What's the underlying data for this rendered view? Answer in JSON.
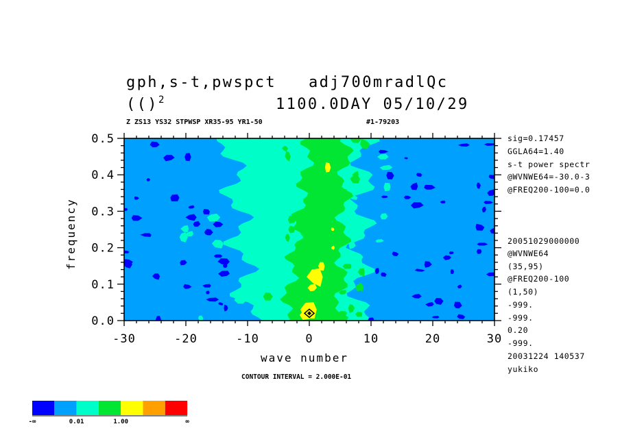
{
  "header": {
    "title_line1": "gph,s-t,pwspct   adj700mradlQc",
    "title_line2_left": "(()",
    "title_superscript": "2",
    "title_line2_right": "1100.0DAY 05/10/29",
    "subtitle": "Z ZS13 YS32 STPWSP XR35-95 YR1-50",
    "run_id": "#1-79203"
  },
  "side_info": [
    "sig=0.17457",
    "GGLA64=1.40",
    "s-t power spectr",
    "@WVNWE64=-30.0-3",
    "@FREQ200-100=0.0"
  ],
  "side_info2": [
    "20051029000000",
    "@WVNWE64",
    "(35,95)",
    "@FREQ200-100",
    "(1,50)",
    "-999.",
    "-999.",
    "0.20",
    "-999.",
    "20031224 140537",
    "yukiko"
  ],
  "footer": {
    "contour_interval": "CONTOUR INTERVAL = 2.000E-01"
  },
  "colorbar": {
    "colors": [
      "#0000ff",
      "#00a0ff",
      "#00ffc8",
      "#00e632",
      "#ffff00",
      "#ffa000",
      "#ff0000"
    ],
    "labels": [
      "-∞",
      "0.01",
      "1.00",
      "∞"
    ]
  },
  "chart_data": {
    "type": "heatmap",
    "xlabel": "wave number",
    "ylabel": "frequency",
    "xlim": [
      -30,
      30
    ],
    "ylim": [
      0.0,
      0.5
    ],
    "x_ticks": [
      "-30",
      "-20",
      "-10",
      "0",
      "10",
      "20",
      "30"
    ],
    "y_ticks": [
      "0.0",
      "0.1",
      "0.2",
      "0.3",
      "0.4",
      "0.5"
    ],
    "x_tick_values": [
      -30,
      -20,
      -10,
      0,
      10,
      20,
      30
    ],
    "y_tick_values": [
      0.0,
      0.1,
      0.2,
      0.3,
      0.4,
      0.5
    ],
    "contour_bands": [
      {
        "level": "cyan",
        "x_range_at_y0": [
          -10,
          8
        ],
        "x_range_at_y05": [
          -13,
          9
        ]
      },
      {
        "level": "green",
        "x_range_at_y0": [
          -4,
          5
        ],
        "x_range_at_y05": [
          0,
          6
        ]
      },
      {
        "level": "yellow",
        "peaks": [
          [
            0,
            0.03
          ],
          [
            1,
            0.12
          ],
          [
            2,
            0.15
          ],
          [
            3,
            0.42
          ]
        ]
      },
      {
        "level": "dark",
        "peaks": [
          [
            0,
            0.02
          ]
        ]
      }
    ]
  }
}
